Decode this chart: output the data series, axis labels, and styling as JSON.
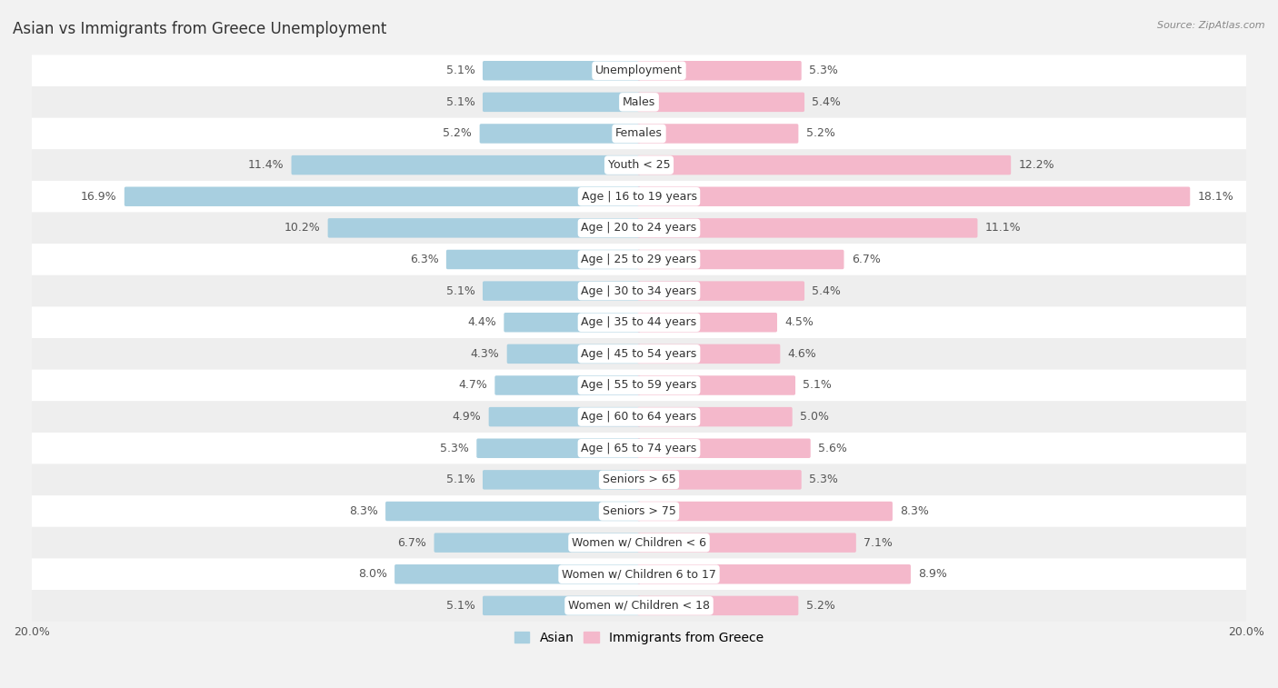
{
  "title": "Asian vs Immigrants from Greece Unemployment",
  "source": "Source: ZipAtlas.com",
  "categories": [
    "Unemployment",
    "Males",
    "Females",
    "Youth < 25",
    "Age | 16 to 19 years",
    "Age | 20 to 24 years",
    "Age | 25 to 29 years",
    "Age | 30 to 34 years",
    "Age | 35 to 44 years",
    "Age | 45 to 54 years",
    "Age | 55 to 59 years",
    "Age | 60 to 64 years",
    "Age | 65 to 74 years",
    "Seniors > 65",
    "Seniors > 75",
    "Women w/ Children < 6",
    "Women w/ Children 6 to 17",
    "Women w/ Children < 18"
  ],
  "asian_values": [
    5.1,
    5.1,
    5.2,
    11.4,
    16.9,
    10.2,
    6.3,
    5.1,
    4.4,
    4.3,
    4.7,
    4.9,
    5.3,
    5.1,
    8.3,
    6.7,
    8.0,
    5.1
  ],
  "greece_values": [
    5.3,
    5.4,
    5.2,
    12.2,
    18.1,
    11.1,
    6.7,
    5.4,
    4.5,
    4.6,
    5.1,
    5.0,
    5.6,
    5.3,
    8.3,
    7.1,
    8.9,
    5.2
  ],
  "asian_color": "#a8cfe0",
  "greece_color": "#f4b8cb",
  "row_colors": [
    "#ffffff",
    "#eeeeee"
  ],
  "background_color": "#f2f2f2",
  "max_value": 20.0,
  "bar_height": 0.52,
  "label_fontsize": 9.0,
  "title_fontsize": 12,
  "source_fontsize": 8,
  "legend_fontsize": 10,
  "value_label_color": "#555555",
  "category_label_color": "#333333",
  "title_color": "#333333"
}
